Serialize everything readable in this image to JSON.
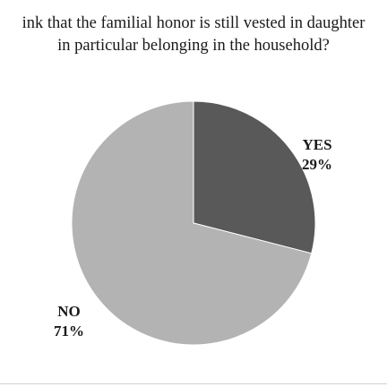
{
  "chart_data": {
    "type": "pie",
    "title_lines": [
      "ink that the familial honor is still vested in daughter",
      "in particular belonging in the household?"
    ],
    "slices": [
      {
        "label": "YES",
        "value": 29,
        "value_label": "29%",
        "color": "#595959"
      },
      {
        "label": "NO",
        "value": 71,
        "value_label": "71%",
        "color": "#b3b3b3"
      }
    ],
    "start_angle": "12 o'clock",
    "direction": "clockwise",
    "legend": "none"
  }
}
